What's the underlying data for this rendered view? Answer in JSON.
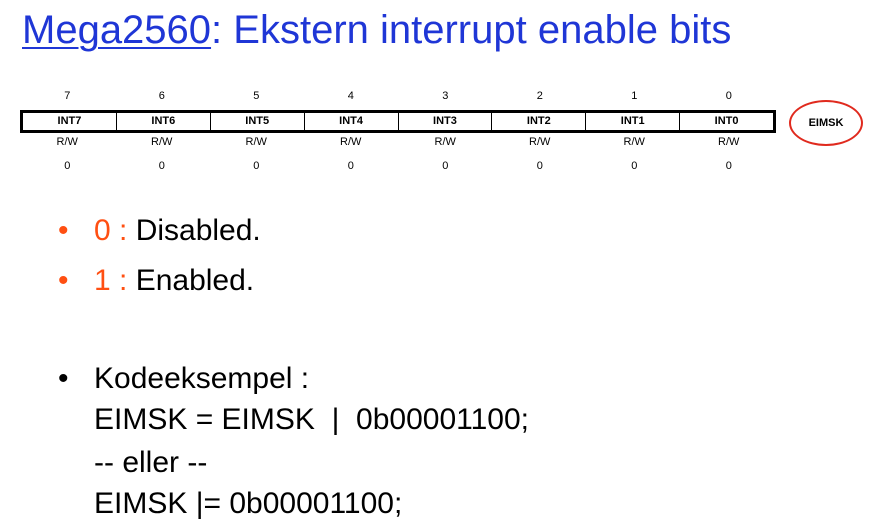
{
  "title": {
    "link_text": "Mega2560",
    "rest": ": Ekstern interrupt enable bits"
  },
  "register": {
    "name": "EIMSK",
    "bit_numbers": [
      "7",
      "6",
      "5",
      "4",
      "3",
      "2",
      "1",
      "0"
    ],
    "bit_names": [
      "INT7",
      "INT6",
      "INT5",
      "INT4",
      "INT3",
      "INT2",
      "INT1",
      "INT0"
    ],
    "access": [
      "R/W",
      "R/W",
      "R/W",
      "R/W",
      "R/W",
      "R/W",
      "R/W",
      "R/W"
    ],
    "reset_values": [
      "0",
      "0",
      "0",
      "0",
      "0",
      "0",
      "0",
      "0"
    ]
  },
  "bullets": [
    {
      "value": "0 :",
      "text": " Disabled."
    },
    {
      "value": "1 :",
      "text": " Enabled."
    }
  ],
  "code_example": {
    "heading": "Kodeeksempel :",
    "lines": [
      "EIMSK = EIMSK  |  0b00001100;",
      "-- eller --",
      "EIMSK |= 0b00001100;"
    ]
  },
  "colors": {
    "title": "#1f36d6",
    "highlight": "#ff4f12",
    "circle": "#e02a1e"
  },
  "icons": {
    "bullet": "bullet-dot"
  }
}
